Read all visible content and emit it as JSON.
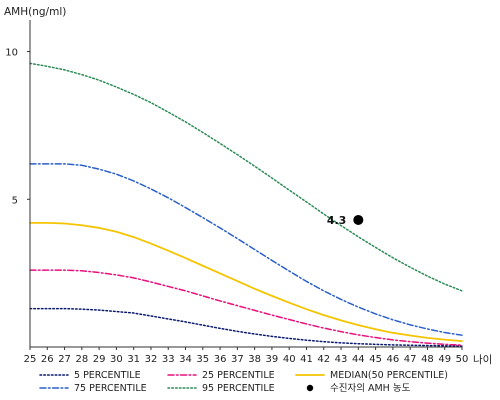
{
  "chart_data": {
    "type": "line",
    "ylabel": "AMH(ng/ml)",
    "xlabel": "나이",
    "xlim": [
      25,
      50
    ],
    "ylim": [
      0,
      11
    ],
    "x": [
      25,
      26,
      27,
      28,
      29,
      30,
      31,
      32,
      33,
      34,
      35,
      36,
      37,
      38,
      39,
      40,
      41,
      42,
      43,
      44,
      45,
      46,
      47,
      48,
      49,
      50
    ],
    "x_ticks": [
      "25",
      "26",
      "27",
      "28",
      "29",
      "30",
      "31",
      "32",
      "33",
      "34",
      "35",
      "36",
      "37",
      "38",
      "39",
      "40",
      "41",
      "42",
      "43",
      "44",
      "45",
      "46",
      "47",
      "48",
      "49",
      "50"
    ],
    "y_ticks": [
      "5",
      "10"
    ],
    "y_tick_values": [
      5,
      10
    ],
    "series": [
      {
        "name": "5 PERCENTILE",
        "color": "#0a1a6e",
        "style": "dotted",
        "values": [
          1.3,
          1.3,
          1.3,
          1.28,
          1.25,
          1.2,
          1.15,
          1.05,
          0.95,
          0.85,
          0.74,
          0.63,
          0.53,
          0.44,
          0.36,
          0.29,
          0.23,
          0.18,
          0.14,
          0.11,
          0.09,
          0.07,
          0.06,
          0.05,
          0.04,
          0.03
        ]
      },
      {
        "name": "25 PERCENTILE",
        "color": "#e8107a",
        "style": "dashdot",
        "values": [
          2.6,
          2.6,
          2.6,
          2.58,
          2.52,
          2.44,
          2.34,
          2.2,
          2.05,
          1.9,
          1.73,
          1.56,
          1.4,
          1.24,
          1.08,
          0.93,
          0.78,
          0.64,
          0.52,
          0.41,
          0.32,
          0.24,
          0.18,
          0.13,
          0.09,
          0.06
        ]
      },
      {
        "name": "MEDIAN(50 PERCENTILE)",
        "color": "#f5c400",
        "style": "solid",
        "values": [
          4.2,
          4.2,
          4.18,
          4.12,
          4.03,
          3.9,
          3.72,
          3.5,
          3.26,
          3.01,
          2.75,
          2.49,
          2.23,
          1.97,
          1.73,
          1.5,
          1.28,
          1.08,
          0.9,
          0.74,
          0.6,
          0.48,
          0.39,
          0.31,
          0.25,
          0.2
        ]
      },
      {
        "name": "75 PERCENTILE",
        "color": "#2b5fc9",
        "style": "dashdot",
        "values": [
          6.2,
          6.2,
          6.2,
          6.15,
          6.02,
          5.85,
          5.62,
          5.35,
          5.05,
          4.72,
          4.38,
          4.03,
          3.67,
          3.3,
          2.93,
          2.57,
          2.22,
          1.9,
          1.61,
          1.35,
          1.12,
          0.92,
          0.75,
          0.61,
          0.49,
          0.4
        ]
      },
      {
        "name": "95 PERCENTILE",
        "color": "#2e8b57",
        "style": "dotted",
        "values": [
          9.6,
          9.5,
          9.38,
          9.22,
          9.03,
          8.8,
          8.55,
          8.27,
          7.95,
          7.62,
          7.26,
          6.89,
          6.51,
          6.12,
          5.72,
          5.31,
          4.91,
          4.5,
          4.11,
          3.73,
          3.37,
          3.02,
          2.7,
          2.4,
          2.13,
          1.9
        ]
      }
    ],
    "points": [
      {
        "name": "수진자의 AMH 농도",
        "x": 44,
        "y": 4.3,
        "label": "4.3",
        "color": "#000000"
      }
    ],
    "legend_position": "bottom",
    "grid": false
  }
}
